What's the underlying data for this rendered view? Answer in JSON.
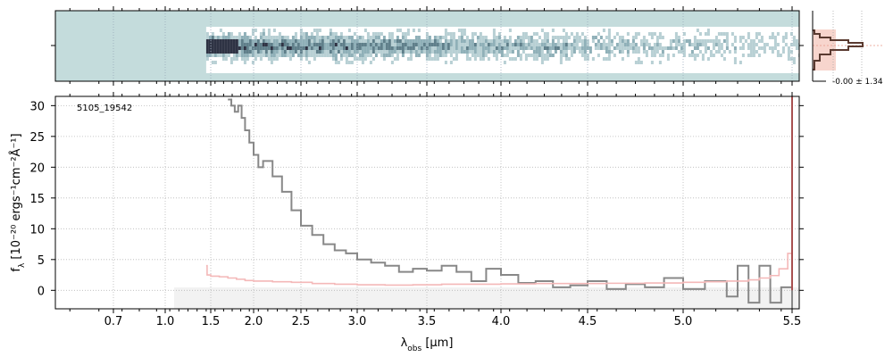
{
  "chart_data": [
    {
      "type": "heatmap",
      "panel": "2D spectrum",
      "colormap": [
        "#c4dcdc",
        "#ffffff",
        "#8fb4bb",
        "#222233"
      ],
      "note_visible": "trace starts near 1.45 um, strong at blue end, fading to red"
    },
    {
      "type": "line",
      "panel": "1D spectrum",
      "annotation": "5105_19542",
      "xlabel": "λobs [μm]",
      "ylabel": "fλ [10⁻²⁰ ergs⁻¹cm⁻²Å⁻¹]",
      "xticks": [
        "0.7",
        "1.0",
        "1.5",
        "2.0",
        "2.5",
        "3.0",
        "3.5",
        "4.0",
        "4.5",
        "5.0",
        "5.5"
      ],
      "yticks": [
        "0",
        "5",
        "10",
        "15",
        "20",
        "25",
        "30"
      ],
      "ylim": [
        -3,
        31.5
      ],
      "grid": true,
      "series": [
        {
          "color": "#888888",
          "x": [
            1.7,
            1.74,
            1.78,
            1.82,
            1.86,
            1.9,
            1.95,
            2.0,
            2.05,
            2.1,
            2.2,
            2.3,
            2.4,
            2.5,
            2.6,
            2.7,
            2.8,
            2.9,
            3.0,
            3.1,
            3.2,
            3.3,
            3.4,
            3.5,
            3.6,
            3.7,
            3.8,
            3.9,
            4.0,
            4.1,
            4.2,
            4.3,
            4.4,
            4.5,
            4.6,
            4.7,
            4.8,
            4.9,
            5.0,
            5.1,
            5.2,
            5.25,
            5.3,
            5.35,
            5.4,
            5.45,
            5.5
          ],
          "y": [
            31,
            30,
            29,
            30,
            28,
            26,
            24,
            22,
            20,
            21,
            18.5,
            16,
            13,
            10.5,
            9,
            7.5,
            6.5,
            6,
            5,
            4.5,
            4,
            3,
            3.5,
            3.2,
            4,
            3,
            1.5,
            3.5,
            2.5,
            1.2,
            1.5,
            0.5,
            0.8,
            1.5,
            0.2,
            1,
            0.5,
            2,
            0.2,
            1.5,
            -1,
            4,
            -2,
            4,
            -2,
            0.5,
            -3
          ]
        },
        {
          "color": "#f4b8b8",
          "x": [
            1.45,
            1.46,
            1.5,
            1.6,
            1.7,
            1.8,
            1.9,
            2.0,
            2.2,
            2.4,
            2.6,
            2.8,
            3.0,
            3.2,
            3.4,
            3.6,
            3.8,
            4.0,
            4.2,
            4.4,
            4.6,
            4.8,
            5.0,
            5.1,
            5.2,
            5.3,
            5.35,
            5.4,
            5.44,
            5.48,
            5.5
          ],
          "y": [
            4,
            2.5,
            2.3,
            2.2,
            2.0,
            1.8,
            1.6,
            1.5,
            1.4,
            1.3,
            1.1,
            1.0,
            0.9,
            0.85,
            0.9,
            1.0,
            1.0,
            1.05,
            1.1,
            1.1,
            1.15,
            1.2,
            1.3,
            1.4,
            1.5,
            1.7,
            2.0,
            2.4,
            3.5,
            6,
            12
          ]
        },
        {
          "color": "#a85050",
          "x": [
            5.5,
            5.5
          ],
          "y": [
            0,
            31.5
          ]
        }
      ]
    },
    {
      "type": "bar",
      "panel": "spatial profile",
      "label": "-0.00 ± 1.34"
    }
  ]
}
